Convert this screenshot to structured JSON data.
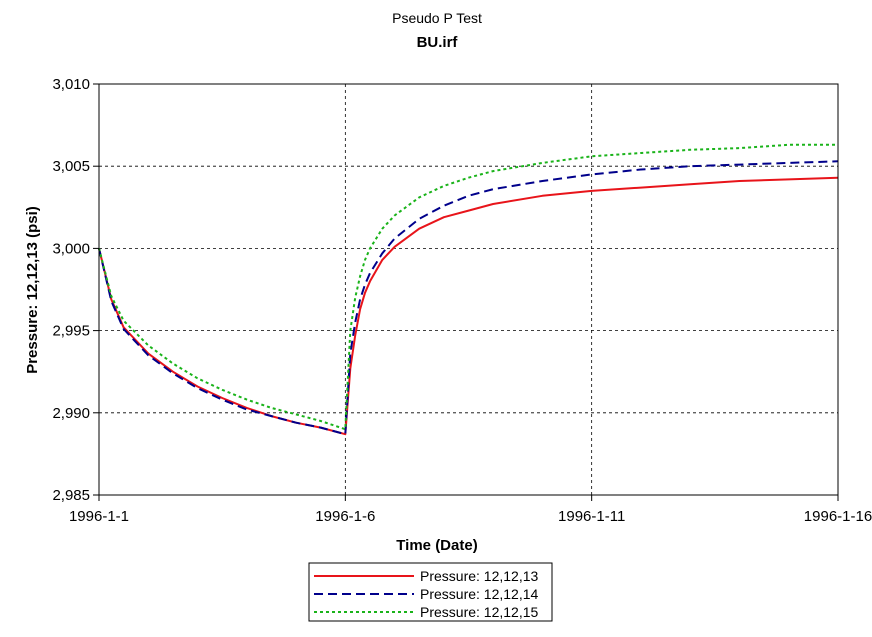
{
  "chart_data": {
    "type": "line",
    "title": "Pseudo P Test",
    "subtitle": "BU.irf",
    "xlabel": "Time (Date)",
    "ylabel": "Pressure: 12,12,13 (psi)",
    "xlim": [
      "1996-1-1",
      "1996-1-16"
    ],
    "ylim": [
      2985,
      3010
    ],
    "x_ticks": [
      {
        "label": "1996-1-1",
        "day": 0
      },
      {
        "label": "1996-1-6",
        "day": 5
      },
      {
        "label": "1996-1-11",
        "day": 10
      },
      {
        "label": "1996-1-16",
        "day": 15
      }
    ],
    "y_ticks": [
      {
        "label": "2,985",
        "value": 2985
      },
      {
        "label": "2,990",
        "value": 2990
      },
      {
        "label": "2,995",
        "value": 2995
      },
      {
        "label": "3,000",
        "value": 3000
      },
      {
        "label": "3,005",
        "value": 3005
      },
      {
        "label": "3,010",
        "value": 3010
      }
    ],
    "grid": true,
    "legend_position": "bottom-center",
    "series": [
      {
        "name": "Pressure: 12,12,13",
        "color": "#e8141a",
        "dash": "solid",
        "points": [
          [
            "1996-1-1 00:00",
            3000.0
          ],
          [
            "1996-1-1 06:00",
            2996.9
          ],
          [
            "1996-1-1 12:00",
            2995.2
          ],
          [
            "1996-1-2 00:00",
            2993.6
          ],
          [
            "1996-1-2 12:00",
            2992.5
          ],
          [
            "1996-1-3 00:00",
            2991.6
          ],
          [
            "1996-1-3 12:00",
            2990.9
          ],
          [
            "1996-1-4 00:00",
            2990.3
          ],
          [
            "1996-1-4 12:00",
            2989.8
          ],
          [
            "1996-1-5 00:00",
            2989.4
          ],
          [
            "1996-1-5 12:00",
            2989.1
          ],
          [
            "1996-1-6 00:00",
            2988.7
          ],
          [
            "1996-1-6 02:24",
            2992.7
          ],
          [
            "1996-1-6 04:48",
            2994.7
          ],
          [
            "1996-1-6 07:12",
            2996.3
          ],
          [
            "1996-1-6 09:36",
            2997.3
          ],
          [
            "1996-1-6 12:00",
            2998.0
          ],
          [
            "1996-1-6 18:00",
            2999.3
          ],
          [
            "1996-1-7 00:00",
            3000.1
          ],
          [
            "1996-1-7 12:00",
            3001.2
          ],
          [
            "1996-1-8 00:00",
            3001.9
          ],
          [
            "1996-1-8 12:00",
            3002.3
          ],
          [
            "1996-1-9 00:00",
            3002.7
          ],
          [
            "1996-1-10 00:00",
            3003.2
          ],
          [
            "1996-1-11 00:00",
            3003.5
          ],
          [
            "1996-1-12 00:00",
            3003.7
          ],
          [
            "1996-1-13 00:00",
            3003.9
          ],
          [
            "1996-1-14 00:00",
            3004.1
          ],
          [
            "1996-1-15 00:00",
            3004.2
          ],
          [
            "1996-1-16 00:00",
            3004.3
          ]
        ]
      },
      {
        "name": "Pressure: 12,12,14",
        "color": "#00008b",
        "dash": "dashed",
        "points": [
          [
            "1996-1-1 00:00",
            3000.0
          ],
          [
            "1996-1-1 06:00",
            2996.8
          ],
          [
            "1996-1-1 12:00",
            2995.1
          ],
          [
            "1996-1-2 00:00",
            2993.5
          ],
          [
            "1996-1-2 12:00",
            2992.4
          ],
          [
            "1996-1-3 00:00",
            2991.5
          ],
          [
            "1996-1-3 12:00",
            2990.8
          ],
          [
            "1996-1-4 00:00",
            2990.2
          ],
          [
            "1996-1-4 12:00",
            2989.8
          ],
          [
            "1996-1-5 00:00",
            2989.4
          ],
          [
            "1996-1-5 12:00",
            2989.1
          ],
          [
            "1996-1-6 00:00",
            2988.7
          ],
          [
            "1996-1-6 02:24",
            2993.6
          ],
          [
            "1996-1-6 04:48",
            2995.5
          ],
          [
            "1996-1-6 07:12",
            2996.9
          ],
          [
            "1996-1-6 09:36",
            2997.8
          ],
          [
            "1996-1-6 12:00",
            2998.5
          ],
          [
            "1996-1-6 18:00",
            2999.7
          ],
          [
            "1996-1-7 00:00",
            3000.6
          ],
          [
            "1996-1-7 12:00",
            3001.8
          ],
          [
            "1996-1-8 00:00",
            3002.6
          ],
          [
            "1996-1-8 12:00",
            3003.2
          ],
          [
            "1996-1-9 00:00",
            3003.6
          ],
          [
            "1996-1-10 00:00",
            3004.1
          ],
          [
            "1996-1-11 00:00",
            3004.5
          ],
          [
            "1996-1-12 00:00",
            3004.8
          ],
          [
            "1996-1-13 00:00",
            3005.0
          ],
          [
            "1996-1-14 00:00",
            3005.1
          ],
          [
            "1996-1-15 00:00",
            3005.2
          ],
          [
            "1996-1-16 00:00",
            3005.3
          ]
        ]
      },
      {
        "name": "Pressure: 12,12,15",
        "color": "#1ab31a",
        "dash": "dotted",
        "points": [
          [
            "1996-1-1 00:00",
            3000.0
          ],
          [
            "1996-1-1 06:00",
            2997.1
          ],
          [
            "1996-1-1 12:00",
            2995.6
          ],
          [
            "1996-1-2 00:00",
            2994.1
          ],
          [
            "1996-1-2 12:00",
            2993.0
          ],
          [
            "1996-1-3 00:00",
            2992.1
          ],
          [
            "1996-1-3 12:00",
            2991.4
          ],
          [
            "1996-1-4 00:00",
            2990.8
          ],
          [
            "1996-1-4 12:00",
            2990.3
          ],
          [
            "1996-1-5 00:00",
            2989.9
          ],
          [
            "1996-1-5 12:00",
            2989.5
          ],
          [
            "1996-1-6 00:00",
            2989.0
          ],
          [
            "1996-1-6 02:24",
            2995.0
          ],
          [
            "1996-1-6 04:48",
            2997.0
          ],
          [
            "1996-1-6 07:12",
            2998.3
          ],
          [
            "1996-1-6 09:36",
            2999.3
          ],
          [
            "1996-1-6 12:00",
            3000.0
          ],
          [
            "1996-1-6 18:00",
            3001.2
          ],
          [
            "1996-1-7 00:00",
            3002.0
          ],
          [
            "1996-1-7 12:00",
            3003.1
          ],
          [
            "1996-1-8 00:00",
            3003.8
          ],
          [
            "1996-1-8 12:00",
            3004.3
          ],
          [
            "1996-1-9 00:00",
            3004.7
          ],
          [
            "1996-1-10 00:00",
            3005.2
          ],
          [
            "1996-1-11 00:00",
            3005.6
          ],
          [
            "1996-1-12 00:00",
            3005.8
          ],
          [
            "1996-1-13 00:00",
            3006.0
          ],
          [
            "1996-1-14 00:00",
            3006.1
          ],
          [
            "1996-1-15 00:00",
            3006.3
          ],
          [
            "1996-1-16 00:00",
            3006.3
          ]
        ]
      }
    ]
  }
}
